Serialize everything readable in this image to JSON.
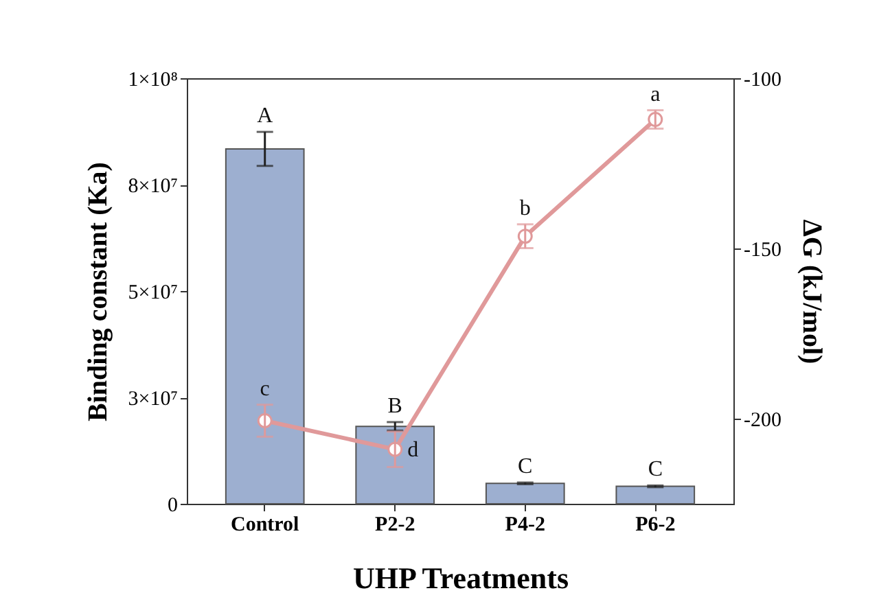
{
  "chart_data": {
    "type": "bar",
    "xlabel": "UHP Treatments",
    "ylabel": "Binding constant (Ka)",
    "y2label": "ΔG (kJ/mol)",
    "categories": [
      "Control",
      "P2-2",
      "P4-2",
      "P6-2"
    ],
    "series": [
      {
        "color": "#9dafd0",
        "values": [
          83400000,
          18200000,
          4800000,
          4100000
        ],
        "errors": [
          4000000,
          1000000,
          200000,
          200000
        ],
        "value_labels": [
          "A",
          "B",
          "C",
          "C"
        ]
      },
      {
        "type": "line",
        "axis": "y2",
        "color": "#e0999a",
        "marker": "circle",
        "line_style": "solid",
        "values": [
          -200.6,
          -209,
          -146.4,
          -112.1
        ],
        "errors": [
          4.7,
          5.2,
          3.5,
          2.7
        ],
        "value_labels": [
          "c",
          "d",
          "b",
          "a"
        ]
      }
    ],
    "ylim": [
      0,
      100000000
    ],
    "yticks": [
      0,
      {
        "value": 25000000,
        "label": "3×10⁷"
      },
      {
        "value": 50000000,
        "label": "5×10⁷"
      },
      {
        "value": 75000000,
        "label": "8×10⁷"
      },
      {
        "value": 100000000,
        "label": "1×10⁸"
      }
    ],
    "y2lim": [
      -225,
      -100
    ],
    "y2ticks": [
      -200,
      -150,
      -100
    ],
    "grid": false
  }
}
